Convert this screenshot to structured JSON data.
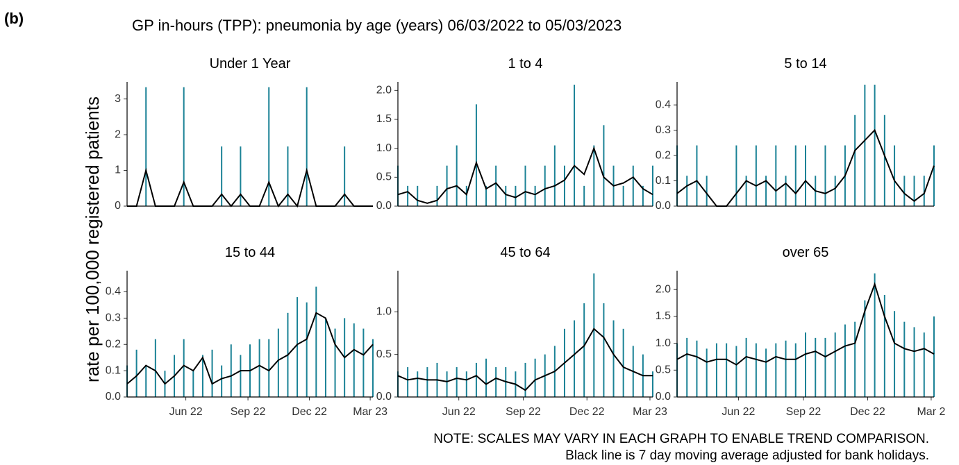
{
  "panel_label": "(b)",
  "title": "GP in-hours (TPP): pneumonia by age (years) 06/03/2022 to 05/03/2023",
  "y_label": "rate per 100,000 registered patients",
  "notes": [
    "NOTE: SCALES MAY VARY IN EACH GRAPH TO ENABLE TREND COMPARISON.",
    "Black line is 7 day moving average adjusted for bank holidays."
  ],
  "chart_data": [
    {
      "type": "bar-line",
      "title": "Under 1 Year",
      "xlim": [
        0,
        364
      ],
      "ylim": [
        0,
        3.4
      ],
      "yticks": [
        0,
        1,
        2,
        3
      ],
      "x": [
        0,
        14,
        28,
        42,
        56,
        70,
        84,
        98,
        112,
        126,
        140,
        154,
        168,
        182,
        196,
        210,
        224,
        238,
        252,
        266,
        280,
        294,
        308,
        322,
        336,
        350,
        364
      ],
      "series": [
        {
          "type": "bar",
          "color": "#1a8296",
          "values": [
            0,
            0,
            3.33,
            0,
            0,
            0,
            3.33,
            0,
            0,
            0,
            1.67,
            0,
            1.67,
            0,
            0,
            3.33,
            0,
            1.67,
            0,
            3.33,
            0,
            0,
            0,
            1.67,
            0,
            0,
            0
          ]
        },
        {
          "type": "line",
          "color": "#000000",
          "values": [
            0,
            0,
            1.0,
            0,
            0,
            0,
            0.67,
            0,
            0,
            0,
            0.33,
            0,
            0.33,
            0,
            0,
            0.67,
            0,
            0.33,
            0,
            1.0,
            0,
            0,
            0,
            0.33,
            0,
            0,
            0
          ]
        }
      ]
    },
    {
      "type": "bar-line",
      "title": "1 to 4",
      "xlim": [
        0,
        364
      ],
      "ylim": [
        0,
        2.1
      ],
      "yticks": [
        {
          "value": 0,
          "label": "0.0"
        },
        0.5,
        {
          "value": 1,
          "label": "1.0"
        },
        1.5,
        {
          "value": 2,
          "label": "2.0"
        }
      ],
      "x": [
        0,
        14,
        28,
        42,
        56,
        70,
        84,
        98,
        112,
        126,
        140,
        154,
        168,
        182,
        196,
        210,
        224,
        238,
        252,
        266,
        280,
        294,
        308,
        322,
        336,
        350,
        364
      ],
      "series": [
        {
          "type": "bar",
          "color": "#1a8296",
          "values": [
            0.7,
            0.35,
            0.35,
            0,
            0.35,
            0.7,
            1.05,
            0.35,
            1.76,
            0.35,
            0.7,
            0.35,
            0.35,
            0.7,
            0.35,
            0.7,
            1.05,
            0.7,
            2.1,
            0.35,
            1.05,
            1.4,
            0.7,
            0.35,
            0.7,
            0.35,
            0.7
          ]
        },
        {
          "type": "line",
          "color": "#000000",
          "values": [
            0.2,
            0.25,
            0.1,
            0.05,
            0.1,
            0.3,
            0.35,
            0.2,
            0.75,
            0.3,
            0.4,
            0.2,
            0.15,
            0.25,
            0.2,
            0.3,
            0.35,
            0.45,
            0.7,
            0.55,
            1.0,
            0.5,
            0.35,
            0.4,
            0.5,
            0.3,
            0.2
          ]
        }
      ]
    },
    {
      "type": "bar-line",
      "title": "5 to 14",
      "xlim": [
        0,
        364
      ],
      "ylim": [
        0,
        0.48
      ],
      "yticks": [
        {
          "value": 0,
          "label": "0.0"
        },
        0.1,
        0.2,
        0.3,
        0.4
      ],
      "x": [
        0,
        14,
        28,
        42,
        56,
        70,
        84,
        98,
        112,
        126,
        140,
        154,
        168,
        182,
        196,
        210,
        224,
        238,
        252,
        266,
        280,
        294,
        308,
        322,
        336,
        350,
        364
      ],
      "series": [
        {
          "type": "bar",
          "color": "#1a8296",
          "values": [
            0.24,
            0.12,
            0.24,
            0.12,
            0,
            0,
            0.24,
            0.12,
            0.24,
            0.12,
            0.24,
            0.12,
            0.24,
            0.24,
            0.12,
            0.24,
            0.12,
            0.24,
            0.36,
            0.48,
            0.48,
            0.36,
            0.24,
            0.12,
            0.12,
            0.12,
            0.24
          ]
        },
        {
          "type": "line",
          "color": "#000000",
          "values": [
            0.05,
            0.08,
            0.1,
            0.05,
            0,
            0,
            0.05,
            0.1,
            0.08,
            0.1,
            0.06,
            0.09,
            0.05,
            0.1,
            0.06,
            0.05,
            0.07,
            0.12,
            0.22,
            0.26,
            0.3,
            0.2,
            0.1,
            0.05,
            0.02,
            0.05,
            0.16
          ]
        }
      ]
    },
    {
      "type": "bar-line",
      "title": "15 to 44",
      "xlim": [
        0,
        364
      ],
      "ylim": [
        0,
        0.47
      ],
      "yticks": [
        {
          "value": 0,
          "label": "0.0"
        },
        0.1,
        0.2,
        0.3,
        0.4
      ],
      "xticks": [
        {
          "value": 87,
          "label": "Jun 22"
        },
        {
          "value": 179,
          "label": "Sep 22"
        },
        {
          "value": 270,
          "label": "Dec 22"
        },
        {
          "value": 360,
          "label": "Mar 23"
        }
      ],
      "x": [
        0,
        14,
        28,
        42,
        56,
        70,
        84,
        98,
        112,
        126,
        140,
        154,
        168,
        182,
        196,
        210,
        224,
        238,
        252,
        266,
        280,
        294,
        308,
        322,
        336,
        350,
        364
      ],
      "series": [
        {
          "type": "bar",
          "color": "#1a8296",
          "values": [
            0.12,
            0.18,
            0.12,
            0.22,
            0.1,
            0.16,
            0.22,
            0.1,
            0.16,
            0.18,
            0.12,
            0.2,
            0.16,
            0.2,
            0.22,
            0.22,
            0.26,
            0.32,
            0.38,
            0.36,
            0.42,
            0.3,
            0.26,
            0.3,
            0.28,
            0.26,
            0.22
          ]
        },
        {
          "type": "line",
          "color": "#000000",
          "values": [
            0.05,
            0.08,
            0.12,
            0.1,
            0.05,
            0.08,
            0.12,
            0.1,
            0.15,
            0.05,
            0.07,
            0.08,
            0.1,
            0.1,
            0.12,
            0.1,
            0.14,
            0.16,
            0.2,
            0.22,
            0.32,
            0.3,
            0.2,
            0.15,
            0.18,
            0.16,
            0.2
          ]
        }
      ]
    },
    {
      "type": "bar-line",
      "title": "45 to 64",
      "xlim": [
        0,
        364
      ],
      "ylim": [
        0,
        1.45
      ],
      "yticks": [
        {
          "value": 0,
          "label": "0.0"
        },
        0.5,
        {
          "value": 1,
          "label": "1.0"
        }
      ],
      "xticks": [
        {
          "value": 87,
          "label": "Jun 22"
        },
        {
          "value": 179,
          "label": "Sep 22"
        },
        {
          "value": 270,
          "label": "Dec 22"
        },
        {
          "value": 360,
          "label": "Mar 23"
        }
      ],
      "x": [
        0,
        14,
        28,
        42,
        56,
        70,
        84,
        98,
        112,
        126,
        140,
        154,
        168,
        182,
        196,
        210,
        224,
        238,
        252,
        266,
        280,
        294,
        308,
        322,
        336,
        350,
        364
      ],
      "series": [
        {
          "type": "bar",
          "color": "#1a8296",
          "values": [
            0.3,
            0.35,
            0.3,
            0.35,
            0.4,
            0.3,
            0.35,
            0.3,
            0.4,
            0.45,
            0.35,
            0.35,
            0.3,
            0.4,
            0.45,
            0.5,
            0.6,
            0.8,
            0.9,
            1.1,
            1.45,
            1.1,
            0.9,
            0.8,
            0.6,
            0.5,
            0.3
          ]
        },
        {
          "type": "line",
          "color": "#000000",
          "values": [
            0.25,
            0.2,
            0.22,
            0.2,
            0.2,
            0.18,
            0.22,
            0.2,
            0.25,
            0.15,
            0.22,
            0.18,
            0.15,
            0.08,
            0.2,
            0.25,
            0.3,
            0.4,
            0.5,
            0.6,
            0.8,
            0.7,
            0.5,
            0.35,
            0.3,
            0.25,
            0.25
          ]
        }
      ]
    },
    {
      "type": "bar-line",
      "title": "over 65",
      "xlim": [
        0,
        364
      ],
      "ylim": [
        0,
        2.3
      ],
      "yticks": [
        {
          "value": 0,
          "label": "0.0"
        },
        0.5,
        {
          "value": 1,
          "label": "1.0"
        },
        1.5,
        {
          "value": 2,
          "label": "2.0"
        }
      ],
      "xticks": [
        {
          "value": 87,
          "label": "Jun 22"
        },
        {
          "value": 179,
          "label": "Sep 22"
        },
        {
          "value": 270,
          "label": "Dec 22"
        },
        {
          "value": 360,
          "label": "Mar 2"
        }
      ],
      "x": [
        0,
        14,
        28,
        42,
        56,
        70,
        84,
        98,
        112,
        126,
        140,
        154,
        168,
        182,
        196,
        210,
        224,
        238,
        252,
        266,
        280,
        294,
        308,
        322,
        336,
        350,
        364
      ],
      "series": [
        {
          "type": "bar",
          "color": "#1a8296",
          "values": [
            1.0,
            1.1,
            1.05,
            0.9,
            1.0,
            1.0,
            0.95,
            1.1,
            1.0,
            0.9,
            1.0,
            1.05,
            1.0,
            1.2,
            1.1,
            1.1,
            1.2,
            1.35,
            1.4,
            1.8,
            2.3,
            1.9,
            1.6,
            1.4,
            1.3,
            1.2,
            1.5
          ]
        },
        {
          "type": "line",
          "color": "#000000",
          "values": [
            0.7,
            0.8,
            0.75,
            0.65,
            0.7,
            0.7,
            0.6,
            0.75,
            0.7,
            0.65,
            0.75,
            0.7,
            0.7,
            0.8,
            0.85,
            0.75,
            0.85,
            0.95,
            1.0,
            1.6,
            2.1,
            1.5,
            1.0,
            0.9,
            0.85,
            0.9,
            0.8
          ]
        }
      ]
    }
  ]
}
